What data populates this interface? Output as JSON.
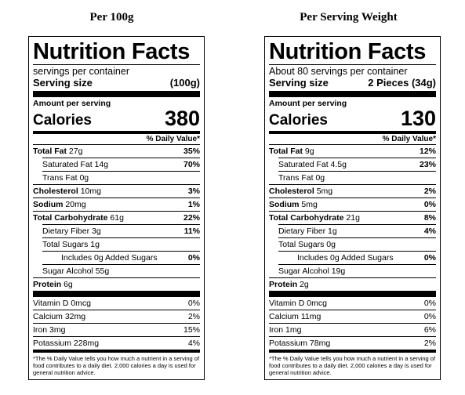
{
  "headings": {
    "left": "Per 100g",
    "right": "Per Serving Weight"
  },
  "labels": [
    {
      "title": "Nutrition Facts",
      "servings": "servings per container",
      "serving_size_label": "Serving size",
      "serving_size_value": "(100g)",
      "amount_per_serving": "Amount per serving",
      "calories_label": "Calories",
      "calories_value": "380",
      "dv_header": "% Daily Value*",
      "total_fat": {
        "label": "Total Fat",
        "amount": "27g",
        "dv": "35%"
      },
      "saturated_fat": {
        "label": "Saturated Fat 14g",
        "dv": "70%"
      },
      "trans_fat": {
        "label": "Trans Fat 0g"
      },
      "cholesterol": {
        "label": "Cholesterol",
        "amount": "10mg",
        "dv": "3%"
      },
      "sodium": {
        "label": "Sodium",
        "amount": "20mg",
        "dv": "1%"
      },
      "total_carb": {
        "label": "Total Carbohydrate",
        "amount": "61g",
        "dv": "22%"
      },
      "dietary_fiber": {
        "label": "Dietary Fiber 3g",
        "dv": "11%"
      },
      "total_sugars": {
        "label": "Total Sugars 1g"
      },
      "added_sugars": {
        "label": "Includes 0g Added Sugars",
        "dv": "0%"
      },
      "sugar_alcohol": {
        "label": "Sugar Alcohol 55g"
      },
      "protein": {
        "label": "Protein",
        "amount": "6g"
      },
      "vitamin_d": {
        "label": "Vitamin D 0mcg",
        "dv": "0%"
      },
      "calcium": {
        "label": "Calcium 32mg",
        "dv": "2%"
      },
      "iron": {
        "label": "Iron 3mg",
        "dv": "15%"
      },
      "potassium": {
        "label": "Potassium 228mg",
        "dv": "4%"
      },
      "footnote": "*The % Daily Value tells you how much a nutrient in a serving of food contributes to a daily diet. 2,000 calories a day is used for general nutrition advice."
    },
    {
      "title": "Nutrition Facts",
      "servings": "About 80 servings per container",
      "serving_size_label": "Serving size",
      "serving_size_value": "2 Pieces (34g)",
      "amount_per_serving": "Amount per serving",
      "calories_label": "Calories",
      "calories_value": "130",
      "dv_header": "% Daily Value*",
      "total_fat": {
        "label": "Total Fat",
        "amount": "9g",
        "dv": "12%"
      },
      "saturated_fat": {
        "label": "Saturated Fat 4.5g",
        "dv": "23%"
      },
      "trans_fat": {
        "label": "Trans Fat 0g"
      },
      "cholesterol": {
        "label": "Cholesterol",
        "amount": "5mg",
        "dv": "2%"
      },
      "sodium": {
        "label": "Sodium",
        "amount": "5mg",
        "dv": "0%"
      },
      "total_carb": {
        "label": "Total Carbohydrate",
        "amount": "21g",
        "dv": "8%"
      },
      "dietary_fiber": {
        "label": "Dietary Fiber 1g",
        "dv": "4%"
      },
      "total_sugars": {
        "label": "Total Sugars 0g"
      },
      "added_sugars": {
        "label": "Includes 0g Added Sugars",
        "dv": "0%"
      },
      "sugar_alcohol": {
        "label": "Sugar Alcohol 19g"
      },
      "protein": {
        "label": "Protein",
        "amount": "2g"
      },
      "vitamin_d": {
        "label": "Vitamin D 0mcg",
        "dv": "0%"
      },
      "calcium": {
        "label": "Calcium 11mg",
        "dv": "0%"
      },
      "iron": {
        "label": "Iron 1mg",
        "dv": "6%"
      },
      "potassium": {
        "label": "Potassium 78mg",
        "dv": "2%"
      },
      "footnote": "*The % Daily Value tells you how much a nutrient in a serving of food contributes to a daily diet. 2,000 calories a day is used for general nutrition advice."
    }
  ]
}
